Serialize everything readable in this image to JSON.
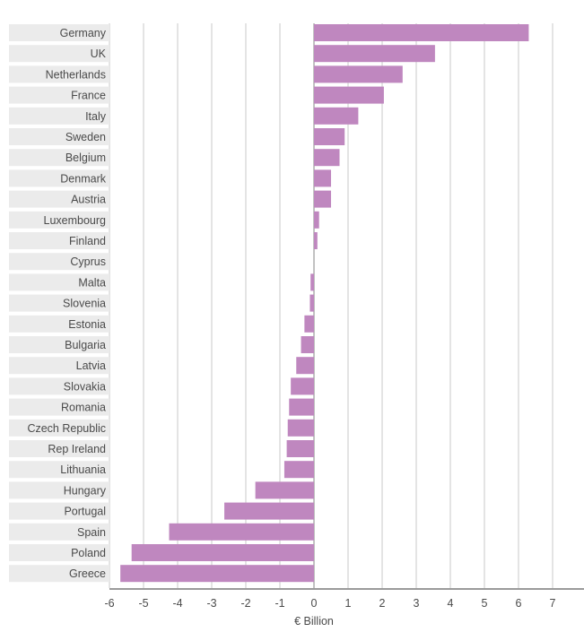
{
  "chart_data": {
    "type": "bar",
    "orientation": "horizontal",
    "xlabel": "€ Billion",
    "xlim": [
      -6,
      8
    ],
    "xticks": [
      -6,
      -5,
      -4,
      -3,
      -2,
      -1,
      0,
      1,
      2,
      3,
      4,
      5,
      6,
      7,
      8
    ],
    "grid": true,
    "bar_color": "#bf87bf",
    "categories": [
      "Germany",
      "UK",
      "Netherlands",
      "France",
      "Italy",
      "Sweden",
      "Belgium",
      "Denmark",
      "Austria",
      "Luxembourg",
      "Finland",
      "Cyprus",
      "Malta",
      "Slovenia",
      "Estonia",
      "Bulgaria",
      "Latvia",
      "Slovakia",
      "Romania",
      "Czech Republic",
      "Rep Ireland",
      "Lithuania",
      "Hungary",
      "Portugal",
      "Spain",
      "Poland",
      "Greece"
    ],
    "values": [
      6.3,
      3.55,
      2.6,
      2.05,
      1.3,
      0.9,
      0.75,
      0.5,
      0.5,
      0.15,
      0.1,
      0.0,
      -0.1,
      -0.12,
      -0.28,
      -0.38,
      -0.52,
      -0.68,
      -0.73,
      -0.77,
      -0.8,
      -0.87,
      -1.72,
      -2.63,
      -4.25,
      -5.35,
      -5.68
    ]
  }
}
